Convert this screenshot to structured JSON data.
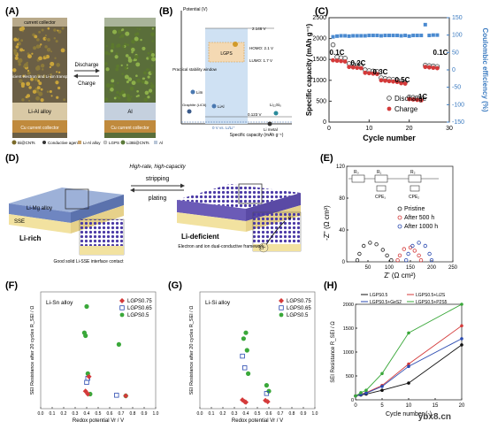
{
  "panels": {
    "A": {
      "label": "(A)",
      "top_label": "current collector",
      "left_caption": "Efficient electron and Li-ion transport",
      "middle_top": "Discharge",
      "middle_bottom": "Charge",
      "left_alloy": "Li-Al alloy",
      "right_alloy": "Al",
      "bottom_left": "Cu current collector",
      "bottom_right": "Cu current collector"
    },
    "A_legend": [
      {
        "icon": "bacnt-icon",
        "text": "Bi@CNTs"
      },
      {
        "icon": "agent-icon",
        "text": "Conductive agent"
      },
      {
        "icon": "lial-icon",
        "text": "Li-Al alloy"
      },
      {
        "icon": "lgps-icon",
        "text": "LGPS"
      },
      {
        "icon": "li3bi-icon",
        "text": "Li3Bi@CNTs"
      },
      {
        "icon": "al-icon",
        "text": "Al"
      }
    ],
    "B": {
      "label": "(B)",
      "ylabel": "Potential (V)",
      "xlabel": "Specific capacity (mAh g⁻¹)",
      "v_top": "2.146 V",
      "v_bot": "0.123 V",
      "homo": "HOMO: 2.1 V",
      "lumo": "LUMO: 1.7 V",
      "window": "Practical stability window",
      "lgps": "LGPS",
      "lin": "LiIn",
      "lial": "LiAl",
      "graphite": "Graphite (LiC6)",
      "li_si": "Li₂₂Si₅",
      "li_metal": "Li metal",
      "zero": "0 V vs. Li/Li⁺"
    },
    "C": {
      "label": "(C)",
      "ylabel": "Specific capacity (mAh g⁻¹)",
      "y2label": "Coulombic efficiency (%)",
      "xlabel": "Cycle number",
      "legend_discharge": "Discharge",
      "legend_charge": "Charge",
      "rates": [
        "0.1C",
        "0.2C",
        "0.3C",
        "0.5C",
        "1C",
        "0.1C"
      ]
    },
    "D": {
      "label": "(D)",
      "top_text": "High-rate, high-capacity",
      "stripping": "stripping",
      "plating": "plating",
      "li_mg": "Li-Mg alloy",
      "sse": "SSE",
      "li_rich": "Li-rich",
      "li_def": "Li-deficient",
      "left_caption": "Good solid Li-SSE interface contact",
      "right_caption": "Electron and ion dual-conductive framework",
      "e_minus": "e⁻",
      "li_plus": "Li⁺"
    },
    "E": {
      "label": "(E)",
      "ylabel": "-Z'' (Ω cm²)",
      "xlabel": "Z' (Ω cm²)",
      "circuit": [
        "R₀",
        "R₁",
        "R₂",
        "CPE₁",
        "CPE₂"
      ],
      "legend": [
        "Pristine",
        "After 500 h",
        "After 1000 h"
      ]
    },
    "F": {
      "label": "(F)",
      "ylabel": "SEI Resistance after 20 cycles R_SEI / Ω",
      "xlabel": "Redox potential Vr / V",
      "title": "Li-Sn alloy"
    },
    "G": {
      "label": "(G)",
      "ylabel": "SEI Resistance after 20 cycles R_SEI / Ω",
      "xlabel": "Redox potential Vr / V",
      "title": "Li-Si alloy"
    },
    "H": {
      "label": "(H)",
      "ylabel": "SEI Resistance R_SEI / Ω",
      "xlabel": "Cycle number (-)"
    }
  },
  "watermark": "ybx8.cn",
  "chart_data": [
    {
      "panel": "C",
      "type": "scatter",
      "xlabel": "Cycle number",
      "ylabel": "Specific capacity (mAh g⁻¹)",
      "y2label": "Coulombic efficiency (%)",
      "xlim": [
        0,
        30
      ],
      "ylim": [
        0,
        2500
      ],
      "y2lim": [
        -150,
        150
      ],
      "xticks": [
        0,
        10,
        20,
        30
      ],
      "yticks": [
        0,
        500,
        1000,
        1500,
        2000,
        2500
      ],
      "y2ticks": [
        -150,
        -100,
        -50,
        0,
        50,
        100,
        150
      ],
      "series": [
        {
          "name": "Discharge",
          "x": [
            1,
            2,
            3,
            4,
            5,
            6,
            7,
            8,
            9,
            10,
            11,
            12,
            13,
            14,
            15,
            16,
            17,
            18,
            19,
            20,
            21,
            22,
            23,
            24,
            25,
            26,
            27
          ],
          "values": [
            1850,
            1560,
            1540,
            1530,
            1400,
            1380,
            1370,
            1360,
            1250,
            1230,
            1220,
            1210,
            1060,
            1040,
            1030,
            1020,
            1010,
            970,
            950,
            600,
            590,
            580,
            570,
            1360,
            1350,
            1340,
            1330
          ]
        },
        {
          "name": "Charge",
          "x": [
            1,
            2,
            3,
            4,
            5,
            6,
            7,
            8,
            9,
            10,
            11,
            12,
            13,
            14,
            15,
            16,
            17,
            18,
            19,
            20,
            21,
            22,
            23,
            24,
            25,
            26,
            27
          ],
          "values": [
            1480,
            1470,
            1460,
            1450,
            1320,
            1310,
            1300,
            1290,
            1180,
            1170,
            1160,
            1150,
            1000,
            990,
            980,
            970,
            960,
            930,
            920,
            550,
            540,
            530,
            520,
            1320,
            1310,
            1300,
            1290
          ]
        },
        {
          "name": "Coulombic efficiency",
          "x": [
            1,
            2,
            3,
            4,
            5,
            6,
            7,
            8,
            9,
            10,
            11,
            12,
            13,
            14,
            15,
            16,
            17,
            18,
            19,
            20,
            21,
            22,
            23,
            24,
            25,
            26,
            27
          ],
          "values": [
            95,
            97,
            98,
            98,
            97,
            98,
            98,
            98,
            98,
            99,
            99,
            99,
            98,
            99,
            99,
            99,
            99,
            98,
            99,
            97,
            99,
            99,
            99,
            130,
            99,
            100,
            100
          ]
        }
      ]
    },
    {
      "panel": "E",
      "type": "line",
      "xlabel": "Z' (Ω cm²)",
      "ylabel": "-Z'' (Ω cm²)",
      "xlim": [
        0,
        250
      ],
      "ylim": [
        0,
        120
      ],
      "xticks": [
        50,
        100,
        150,
        200,
        250
      ],
      "yticks": [
        0,
        40,
        80,
        120
      ],
      "series": [
        {
          "name": "Pristine",
          "x": [
            25,
            30,
            40,
            55,
            70,
            85,
            95,
            105
          ],
          "values": [
            2,
            10,
            20,
            24,
            22,
            15,
            8,
            2
          ]
        },
        {
          "name": "After 500 h",
          "x": [
            120,
            125,
            135,
            150,
            160,
            170,
            175
          ],
          "values": [
            2,
            8,
            16,
            18,
            14,
            8,
            2
          ]
        },
        {
          "name": "After 1000 h",
          "x": [
            140,
            145,
            155,
            170,
            185,
            195,
            200
          ],
          "values": [
            2,
            10,
            20,
            24,
            20,
            10,
            2
          ]
        }
      ]
    },
    {
      "panel": "F",
      "type": "scatter",
      "title": "Li-Sn alloy",
      "xlabel": "Redox potential Vr / V",
      "ylabel": "SEI Resistance after 20 cycles R_SEI / Ω",
      "xlim": [
        0.0,
        1.0
      ],
      "xticks": [
        0.0,
        0.1,
        0.2,
        0.3,
        0.4,
        0.5,
        0.6,
        0.7,
        0.8,
        0.9,
        1.0
      ],
      "series": [
        {
          "name": "LGPS0.75",
          "x": [
            0.39,
            0.41,
            0.42,
            0.74
          ],
          "values": [
            300,
            250,
            550,
            220
          ]
        },
        {
          "name": "LGPS0.65",
          "x": [
            0.4,
            0.41,
            0.66
          ],
          "values": [
            450,
            520,
            230
          ]
        },
        {
          "name": "LGPS0.5",
          "x": [
            0.38,
            0.39,
            0.4,
            0.41,
            0.43,
            0.68,
            0.74
          ],
          "values": [
            1300,
            1250,
            1750,
            600,
            250,
            1100,
            220
          ]
        }
      ]
    },
    {
      "panel": "G",
      "type": "scatter",
      "title": "Li-Si alloy",
      "xlabel": "Redox potential Vr / V",
      "ylabel": "SEI Resistance after 20 cycles R_SEI / Ω",
      "xlim": [
        0.0,
        1.0
      ],
      "xticks": [
        0.0,
        0.1,
        0.2,
        0.3,
        0.4,
        0.5,
        0.6,
        0.7,
        0.8,
        0.9,
        1.0
      ],
      "series": [
        {
          "name": "LGPS0.75",
          "x": [
            0.37,
            0.39,
            0.4,
            0.57,
            0.59
          ],
          "values": [
            150,
            120,
            110,
            140,
            120
          ]
        },
        {
          "name": "LGPS0.65",
          "x": [
            0.37,
            0.39,
            0.58
          ],
          "values": [
            900,
            700,
            260
          ]
        },
        {
          "name": "LGPS0.5",
          "x": [
            0.38,
            0.4,
            0.41,
            0.42,
            0.58,
            0.6
          ],
          "values": [
            1200,
            1300,
            1000,
            600,
            400,
            300
          ]
        }
      ]
    },
    {
      "panel": "H",
      "type": "line",
      "xlabel": "Cycle number (-)",
      "ylabel": "SEI Resistance R_SEI / Ω",
      "xlim": [
        0,
        20
      ],
      "ylim": [
        0,
        2000
      ],
      "xticks": [
        0,
        5,
        10,
        15,
        20
      ],
      "yticks": [
        0,
        500,
        1000,
        1500,
        2000
      ],
      "series": [
        {
          "name": "LGPS0.5",
          "x": [
            0,
            1,
            2,
            5,
            10,
            20
          ],
          "values": [
            80,
            100,
            120,
            200,
            350,
            1150
          ]
        },
        {
          "name": "LGPS0.5+Li2S",
          "x": [
            0,
            1,
            2,
            5,
            10,
            20
          ],
          "values": [
            80,
            120,
            150,
            300,
            750,
            1550
          ]
        },
        {
          "name": "LGPS0.5+GeS2",
          "x": [
            0,
            1,
            2,
            5,
            10,
            20
          ],
          "values": [
            80,
            110,
            140,
            280,
            700,
            1280
          ]
        },
        {
          "name": "LGPS0.5+P2S5",
          "x": [
            0,
            1,
            2,
            5,
            10,
            20
          ],
          "values": [
            80,
            150,
            200,
            550,
            1400,
            2000
          ]
        }
      ]
    }
  ]
}
